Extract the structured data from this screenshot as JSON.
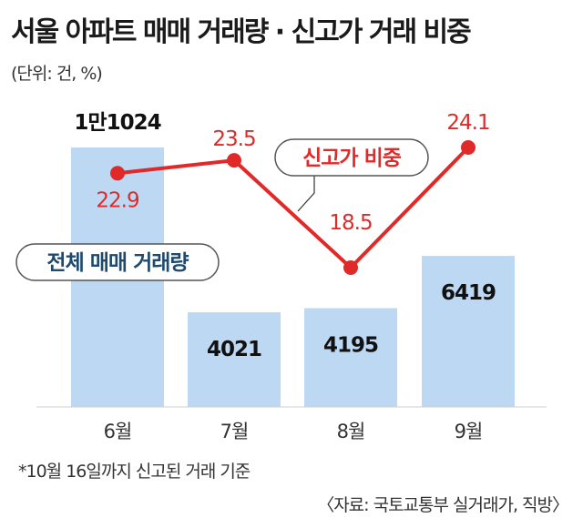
{
  "header": {
    "title": "서울 아파트 매매 거래량 · 신고가 거래 비중",
    "unit": "(단위: 건, %)"
  },
  "chart_data": {
    "type": "bar",
    "categories": [
      "6월",
      "7월",
      "8월",
      "9월"
    ],
    "series": [
      {
        "name": "전체 매매 거래량",
        "type": "bar",
        "values": [
          11024,
          4021,
          4195,
          6419
        ],
        "labels": [
          "1만1024",
          "4021",
          "4195",
          "6419"
        ]
      },
      {
        "name": "신고가 비중",
        "type": "line",
        "values": [
          22.9,
          23.5,
          18.5,
          24.1
        ],
        "labels": [
          "22.9",
          "23.5",
          "18.5",
          "24.1"
        ]
      }
    ],
    "colors": {
      "bar": "#bcd8f2",
      "line": "#e02a2a",
      "legend_bar_text": "#1f4a6e"
    }
  },
  "footer": {
    "note": "*10월 16일까지 신고된 거래 기준",
    "source": "〈자료: 국토교통부 실거래가, 직방〉"
  }
}
